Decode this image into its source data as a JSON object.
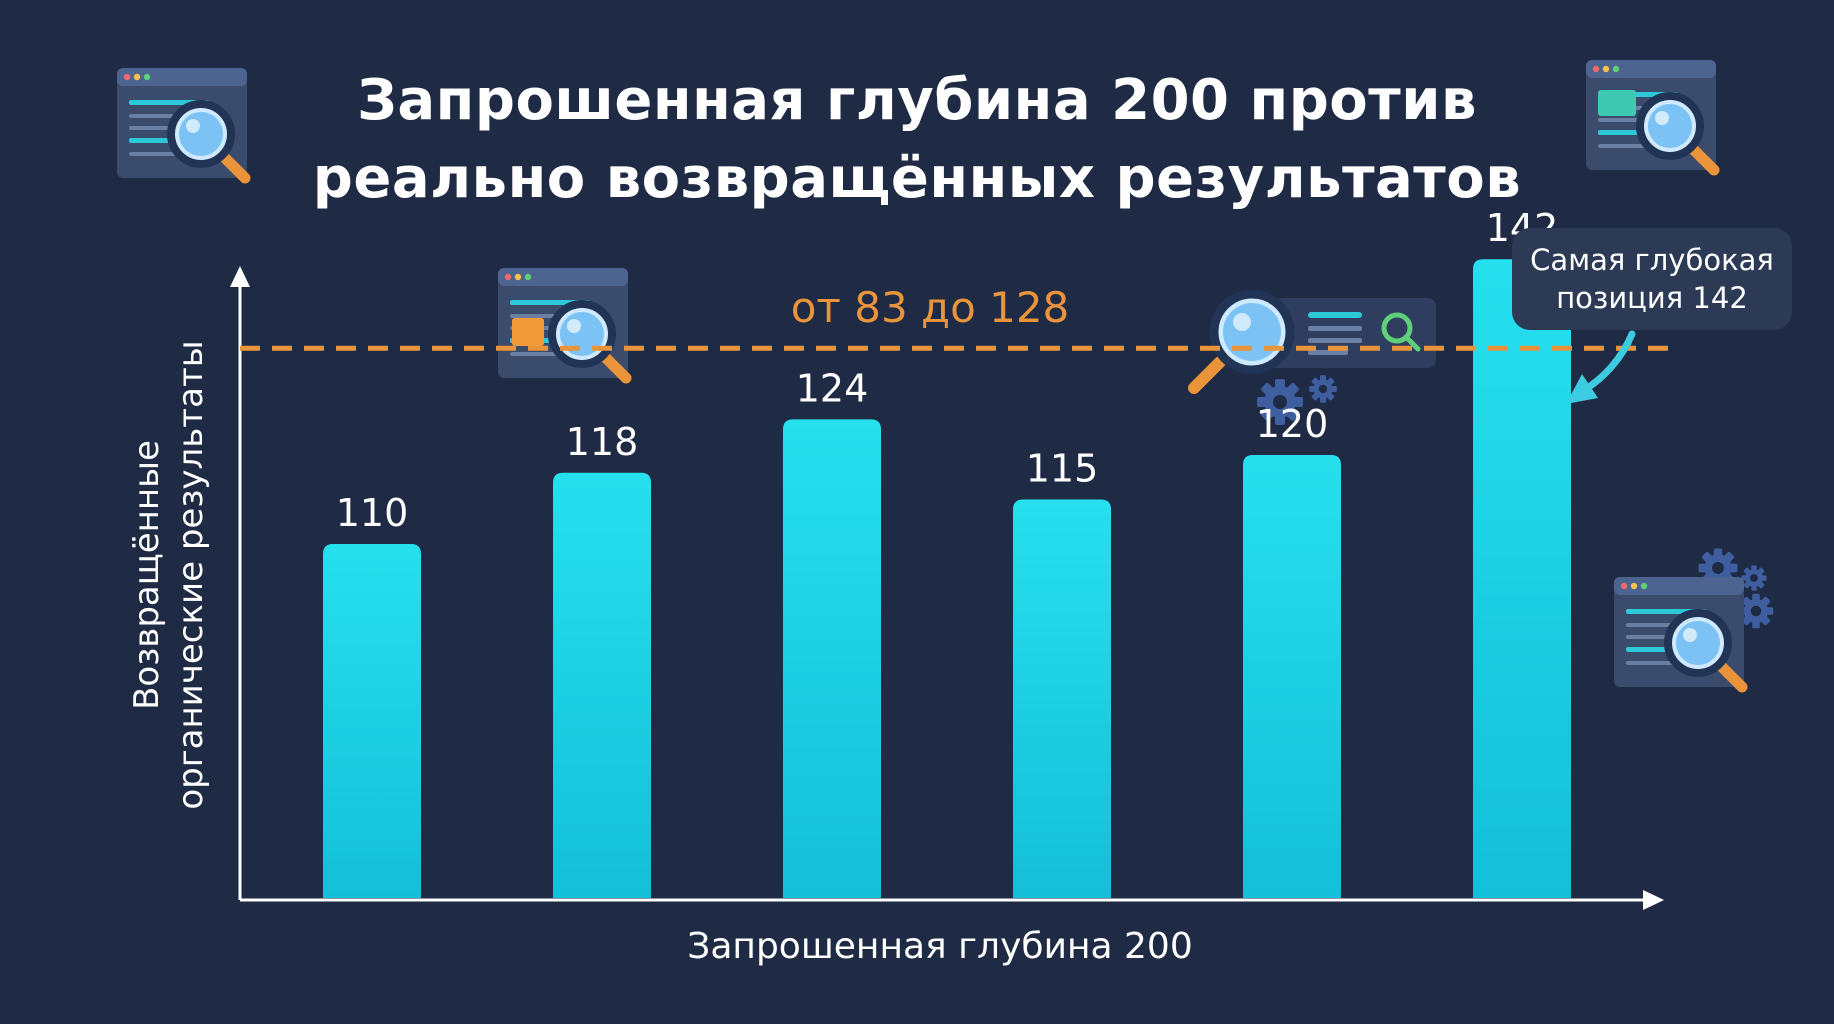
{
  "title_line1": "Запрошенная глубина 200 против",
  "title_line2": "реально возвращённых результатов",
  "callout": {
    "line1": "Самая глубокая",
    "line2": "позиция 142"
  },
  "colors": {
    "background": "#1f2a44",
    "bar": "#22d3e6",
    "reference_line": "#e9943a",
    "text": "#ffffff",
    "axis": "#ffffff"
  },
  "icons": [
    "browser-search-icon",
    "magnifier-icon",
    "gear-icon"
  ],
  "chart_data": {
    "type": "bar",
    "categories": [
      "",
      "",
      "",
      "",
      "",
      ""
    ],
    "values": [
      110,
      118,
      124,
      115,
      120,
      142
    ],
    "data_labels": [
      "110",
      "118",
      "124",
      "115",
      "120",
      "142"
    ],
    "xlabel": "Запрошенная глубина 200",
    "ylabel_line1": "Возвращённые",
    "ylabel_line2": "органические результаты",
    "ylim": [
      70,
      145
    ],
    "grid": false,
    "reference_line": {
      "label": "от 83 до 128",
      "value": 132,
      "style": "dashed"
    }
  }
}
